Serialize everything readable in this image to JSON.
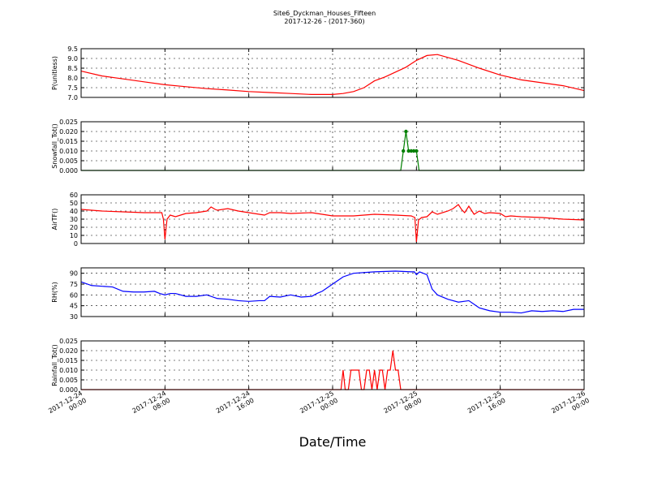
{
  "figure": {
    "title": "Site6_Dyckman_Houses_Fifteen",
    "subtitle": "2017-12-26 - (2017-360)",
    "xlabel": "Date/Time",
    "x_ticks": [
      {
        "l1": "2017-12-24",
        "l2": "00:00"
      },
      {
        "l1": "2017-12-24",
        "l2": "08:00"
      },
      {
        "l1": "2017-12-24",
        "l2": "16:00"
      },
      {
        "l1": "2017-12-25",
        "l2": "00:00"
      },
      {
        "l1": "2017-12-25",
        "l2": "08:00"
      },
      {
        "l1": "2017-12-25",
        "l2": "16:00"
      },
      {
        "l1": "2017-12-26",
        "l2": "00:00"
      }
    ]
  },
  "chart_data": [
    {
      "type": "line",
      "ylabel": "P(unitless)",
      "ylim": [
        7.0,
        9.5
      ],
      "yticks": [
        "7.0",
        "7.5",
        "8.0",
        "8.5",
        "9.0",
        "9.5"
      ],
      "grid": true,
      "color": "#ff0000",
      "markers": false,
      "x_hours": [
        0,
        2,
        4,
        6,
        8,
        10,
        12,
        14,
        16,
        18,
        20,
        22,
        24,
        25,
        26,
        27,
        28,
        29,
        30,
        31,
        32,
        33,
        34,
        36,
        38,
        40,
        42,
        44,
        46,
        48
      ],
      "values": [
        8.35,
        8.1,
        7.95,
        7.8,
        7.65,
        7.55,
        7.45,
        7.38,
        7.3,
        7.25,
        7.2,
        7.15,
        7.15,
        7.2,
        7.3,
        7.5,
        7.85,
        8.05,
        8.3,
        8.55,
        8.9,
        9.15,
        9.2,
        8.9,
        8.5,
        8.15,
        7.9,
        7.75,
        7.6,
        7.35
      ]
    },
    {
      "type": "line",
      "ylabel": "Snowfall_Tot()",
      "ylim": [
        0.0,
        0.025
      ],
      "yticks": [
        "0.000",
        "0.005",
        "0.010",
        "0.015",
        "0.020",
        "0.025"
      ],
      "grid": true,
      "color": "#007f00",
      "markers": true,
      "x_hours": [
        0,
        30.5,
        30.75,
        31.0,
        31.25,
        31.5,
        31.75,
        32.0,
        32.25,
        32.5,
        48
      ],
      "values": [
        0,
        0,
        0.01,
        0.02,
        0.01,
        0.01,
        0.01,
        0.01,
        0.0,
        0,
        0
      ]
    },
    {
      "type": "line",
      "ylabel": "AirTF()",
      "ylim": [
        0,
        60
      ],
      "yticks": [
        "0",
        "10",
        "20",
        "30",
        "40",
        "50",
        "60"
      ],
      "grid": true,
      "color": "#ff0000",
      "markers": false,
      "x_hours": [
        0,
        2,
        4,
        6,
        7.7,
        7.85,
        8.0,
        8.2,
        8.5,
        9,
        10,
        11,
        12,
        12.4,
        12.8,
        13,
        14,
        15,
        16,
        17,
        17.5,
        18,
        19,
        20,
        22,
        24,
        26,
        28,
        30,
        31.5,
        31.85,
        32.0,
        32.2,
        32.5,
        33,
        33.5,
        34,
        35,
        35.5,
        36,
        36.3,
        36.6,
        37,
        37.5,
        38,
        38.5,
        39,
        40,
        40.5,
        41,
        42,
        44,
        46,
        48
      ],
      "values": [
        42,
        40,
        39,
        38,
        38,
        30,
        5,
        30,
        35,
        33,
        37,
        38,
        40,
        45,
        42,
        41,
        43,
        40,
        38,
        36,
        35,
        38,
        38,
        37,
        38,
        34,
        34,
        36,
        35,
        34,
        32,
        2,
        29,
        32,
        33,
        39,
        36,
        40,
        43,
        48,
        42,
        38,
        46,
        36,
        40,
        37,
        38,
        37,
        33,
        34,
        33,
        32,
        30,
        29
      ]
    },
    {
      "type": "line",
      "ylabel": "RH(%)",
      "ylim": [
        30,
        97.5
      ],
      "yticks": [
        "30",
        "45",
        "60",
        "75",
        "90"
      ],
      "grid": true,
      "color": "#0000ff",
      "markers": false,
      "x_hours": [
        0,
        1,
        2,
        3,
        4,
        5,
        6,
        7,
        7.5,
        8,
        8.5,
        9,
        10,
        11,
        12,
        13,
        14,
        15,
        16,
        17,
        17.5,
        18,
        19,
        20,
        21,
        22,
        22.5,
        23,
        24,
        25,
        26,
        28,
        30,
        31.5,
        31.8,
        32.0,
        32.3,
        33,
        33.5,
        34,
        35,
        36,
        37,
        37.5,
        38,
        38.5,
        39,
        40,
        41,
        42,
        43,
        44,
        45,
        46,
        47,
        48
      ],
      "values": [
        78,
        73,
        72,
        71,
        65,
        64,
        64,
        65,
        62,
        60,
        62,
        62,
        58,
        58,
        60,
        55,
        54,
        52,
        51,
        52,
        52,
        58,
        57,
        60,
        57,
        58,
        62,
        65,
        75,
        85,
        90,
        92,
        93,
        92,
        92,
        88,
        92,
        88,
        68,
        60,
        54,
        50,
        52,
        47,
        42,
        40,
        38,
        36,
        36,
        35,
        38,
        37,
        38,
        37,
        40,
        40
      ]
    },
    {
      "type": "line",
      "ylabel": "Rainfall_Tot()",
      "ylim": [
        0.0,
        0.025
      ],
      "yticks": [
        "0.000",
        "0.005",
        "0.010",
        "0.015",
        "0.020",
        "0.025"
      ],
      "grid": true,
      "color": "#ff0000",
      "markers": false,
      "x_hours": [
        0,
        24.8,
        25.0,
        25.2,
        25.5,
        25.75,
        26.0,
        26.25,
        26.5,
        26.75,
        27.0,
        27.25,
        27.5,
        27.75,
        28.0,
        28.25,
        28.5,
        28.75,
        29.0,
        29.25,
        29.5,
        29.75,
        30.0,
        30.25,
        30.5,
        30.75,
        31.0,
        48
      ],
      "values": [
        0,
        0,
        0.01,
        0,
        0,
        0.01,
        0.01,
        0.01,
        0.01,
        0,
        0,
        0.01,
        0.01,
        0,
        0.01,
        0,
        0.01,
        0.01,
        0,
        0.01,
        0.01,
        0.02,
        0.01,
        0.01,
        0.0,
        0,
        0,
        0
      ]
    }
  ]
}
